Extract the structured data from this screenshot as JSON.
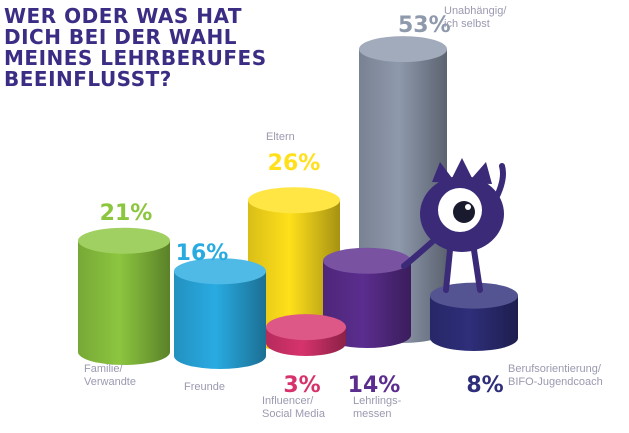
{
  "title": "WER ODER WAS HAT\nDICH BEI DER WAHL\nMEINES LEHRBERUFES\nBEEINFLUSST?",
  "mascot": "one-eyed-purple-monster-icon",
  "chart_data": {
    "type": "bar",
    "style": "3d-cylinders",
    "title": "WER ODER WAS HAT DICH BEI DER WAHL MEINES LEHRBERUFES BEEINFLUSST?",
    "unit": "%",
    "grid": false,
    "legend": "none",
    "categories": [
      "Familie/ Verwandte",
      "Freunde",
      "Eltern",
      "Influencer/ Social Media",
      "Lehrlings- messen",
      "Unabhängig/ ich selbst",
      "Berufsorientierung/ BIFO-Jugendcoach"
    ],
    "values": [
      21,
      16,
      26,
      3,
      14,
      53,
      8
    ],
    "value_labels": [
      "21%",
      "16%",
      "26%",
      "3%",
      "14%",
      "53%",
      "8%"
    ],
    "label_lines": [
      [
        "Familie/",
        "Verwandte"
      ],
      [
        "Freunde"
      ],
      [
        "Eltern"
      ],
      [
        "Influencer/",
        "Social Media"
      ],
      [
        "Lehrlings-",
        "messen"
      ],
      [
        "Unabhängig/",
        "ich selbst"
      ],
      [
        "Berufsorientierung/",
        "BIFO-Jugendcoach"
      ]
    ],
    "colors": [
      "#8cc63f",
      "#29abe2",
      "#ffe01b",
      "#d6336c",
      "#5b2d8e",
      "#8e99ac",
      "#2e2e7a"
    ]
  }
}
